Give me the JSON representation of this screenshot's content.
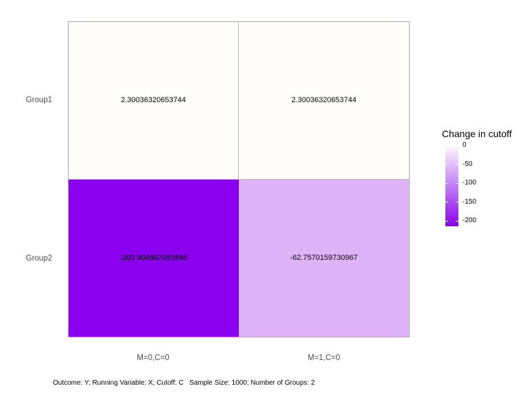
{
  "chart_data": {
    "type": "heatmap",
    "x_categories": [
      "M=0,C=0",
      "M=1,C=0"
    ],
    "y_categories": [
      "Group1",
      "Group2"
    ],
    "cells": [
      {
        "row": "Group1",
        "col": "M=0,C=0",
        "value": 2.30036320653744,
        "label": "2.30036320653744",
        "color": "#FFFEFA"
      },
      {
        "row": "Group1",
        "col": "M=1,C=0",
        "value": 2.30036320653744,
        "label": "2.30036320653744",
        "color": "#FFFEFA"
      },
      {
        "row": "Group2",
        "col": "M=0,C=0",
        "value": -209.904807065846,
        "label": "-209.904807065846",
        "color": "#8A00EF"
      },
      {
        "row": "Group2",
        "col": "M=1,C=0",
        "value": -62.7570159730967,
        "label": "-62.7570159730967",
        "color": "#DFB3F7"
      }
    ],
    "legend": {
      "title": "Change in cutoff",
      "ticks": [
        "0",
        "-50",
        "-100",
        "-150",
        "-200"
      ],
      "range": [
        -200,
        0
      ],
      "high_color": "#FFFFFF",
      "low_color": "#8A00EF",
      "position": "right"
    },
    "grid": false,
    "panel_border_color": "#ABABAB",
    "axis_text_color": "#4D4D4D",
    "caption": "Outcome: Y; Running Variable: X; Cutoff: C   Sample Size: 1000; Number of Groups: 2"
  }
}
